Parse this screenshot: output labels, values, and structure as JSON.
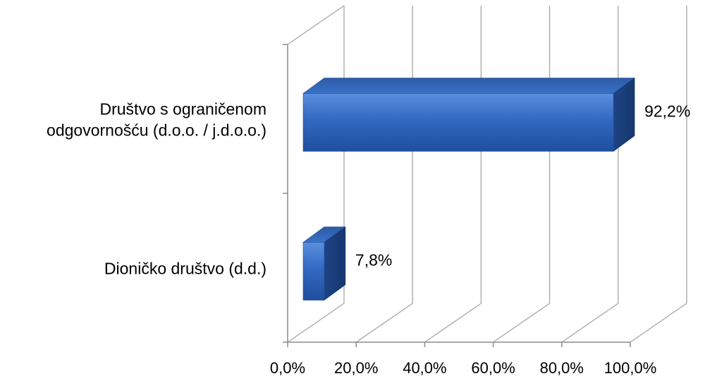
{
  "chart_data": {
    "type": "bar",
    "orientation": "horizontal",
    "style": "3d",
    "categories": [
      [
        "Društvo s ograničenom",
        "odgovornošću (d.o.o. / j.d.o.o.)"
      ],
      [
        "Dioničko društvo (d.d.)"
      ]
    ],
    "values": [
      92.2,
      7.8
    ],
    "value_labels": [
      "92,2%",
      "7,8%"
    ],
    "xlim": [
      0,
      100
    ],
    "xticks": [
      0,
      20,
      40,
      60,
      80,
      100
    ],
    "xtick_labels": [
      "0,0%",
      "20,0%",
      "40,0%",
      "60,0%",
      "80,0%",
      "100,0%"
    ],
    "grid": true,
    "bar_color": "#2f64b8"
  }
}
